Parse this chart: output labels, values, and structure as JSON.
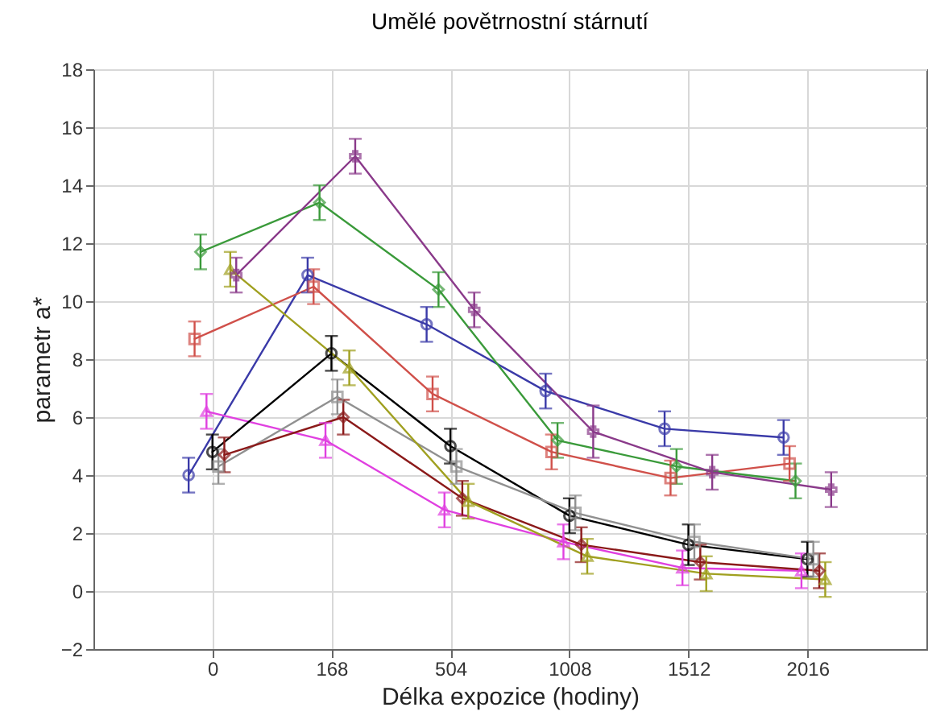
{
  "chart_data": {
    "type": "line",
    "title": "Umělé povětrnostní stárnutí",
    "xlabel": "Délka expozice (hodiny)",
    "ylabel": "parametr a*",
    "categories": [
      "0",
      "168",
      "504",
      "1008",
      "1512",
      "2016"
    ],
    "ylim": [
      -2,
      18
    ],
    "yticks": [
      -2,
      0,
      2,
      4,
      6,
      8,
      10,
      12,
      14,
      16,
      18
    ],
    "grid": true,
    "series": [
      {
        "color": "#3a3aa8",
        "marker": "circle",
        "values": [
          4.0,
          10.9,
          9.2,
          6.9,
          5.6,
          5.3
        ],
        "errors": [
          0.6,
          0.6,
          0.6,
          0.6,
          0.6,
          0.6
        ]
      },
      {
        "color": "#d0504a",
        "marker": "square",
        "values": [
          8.7,
          10.5,
          6.8,
          4.8,
          3.9,
          4.4
        ],
        "errors": [
          0.6,
          0.6,
          0.6,
          0.6,
          0.6,
          0.6
        ]
      },
      {
        "color": "#3a9a3a",
        "marker": "diamond",
        "values": [
          11.7,
          13.4,
          10.4,
          5.2,
          4.3,
          3.8
        ],
        "errors": [
          0.6,
          0.6,
          0.6,
          0.6,
          0.6,
          0.6
        ]
      },
      {
        "color": "#e040e0",
        "marker": "triangle",
        "values": [
          6.2,
          5.2,
          2.8,
          1.7,
          0.8,
          0.7
        ],
        "errors": [
          0.6,
          0.6,
          0.6,
          0.6,
          0.6,
          0.6
        ]
      },
      {
        "color": "#000000",
        "marker": "circle",
        "values": [
          4.8,
          8.2,
          5.0,
          2.6,
          1.6,
          1.1
        ],
        "errors": [
          0.6,
          0.6,
          0.6,
          0.6,
          0.7,
          0.6
        ]
      },
      {
        "color": "#909090",
        "marker": "square",
        "values": [
          4.3,
          6.7,
          4.3,
          2.7,
          1.7,
          1.1
        ],
        "errors": [
          0.6,
          0.6,
          0.6,
          0.6,
          0.6,
          0.6
        ]
      },
      {
        "color": "#8b1a1a",
        "marker": "diamond",
        "values": [
          4.7,
          6.0,
          3.2,
          1.6,
          1.0,
          0.7
        ],
        "errors": [
          0.6,
          0.6,
          0.6,
          0.6,
          0.6,
          0.6
        ]
      },
      {
        "color": "#a0a020",
        "marker": "triangle",
        "values": [
          11.1,
          7.7,
          3.1,
          1.2,
          0.6,
          0.4
        ],
        "errors": [
          0.6,
          0.6,
          0.6,
          0.6,
          0.6,
          0.6
        ]
      },
      {
        "color": "#8a3a8a",
        "marker": "cross",
        "values": [
          10.9,
          15.0,
          9.7,
          5.5,
          4.1,
          3.5
        ],
        "errors": [
          0.6,
          0.6,
          0.6,
          0.9,
          0.6,
          0.6
        ]
      }
    ]
  }
}
